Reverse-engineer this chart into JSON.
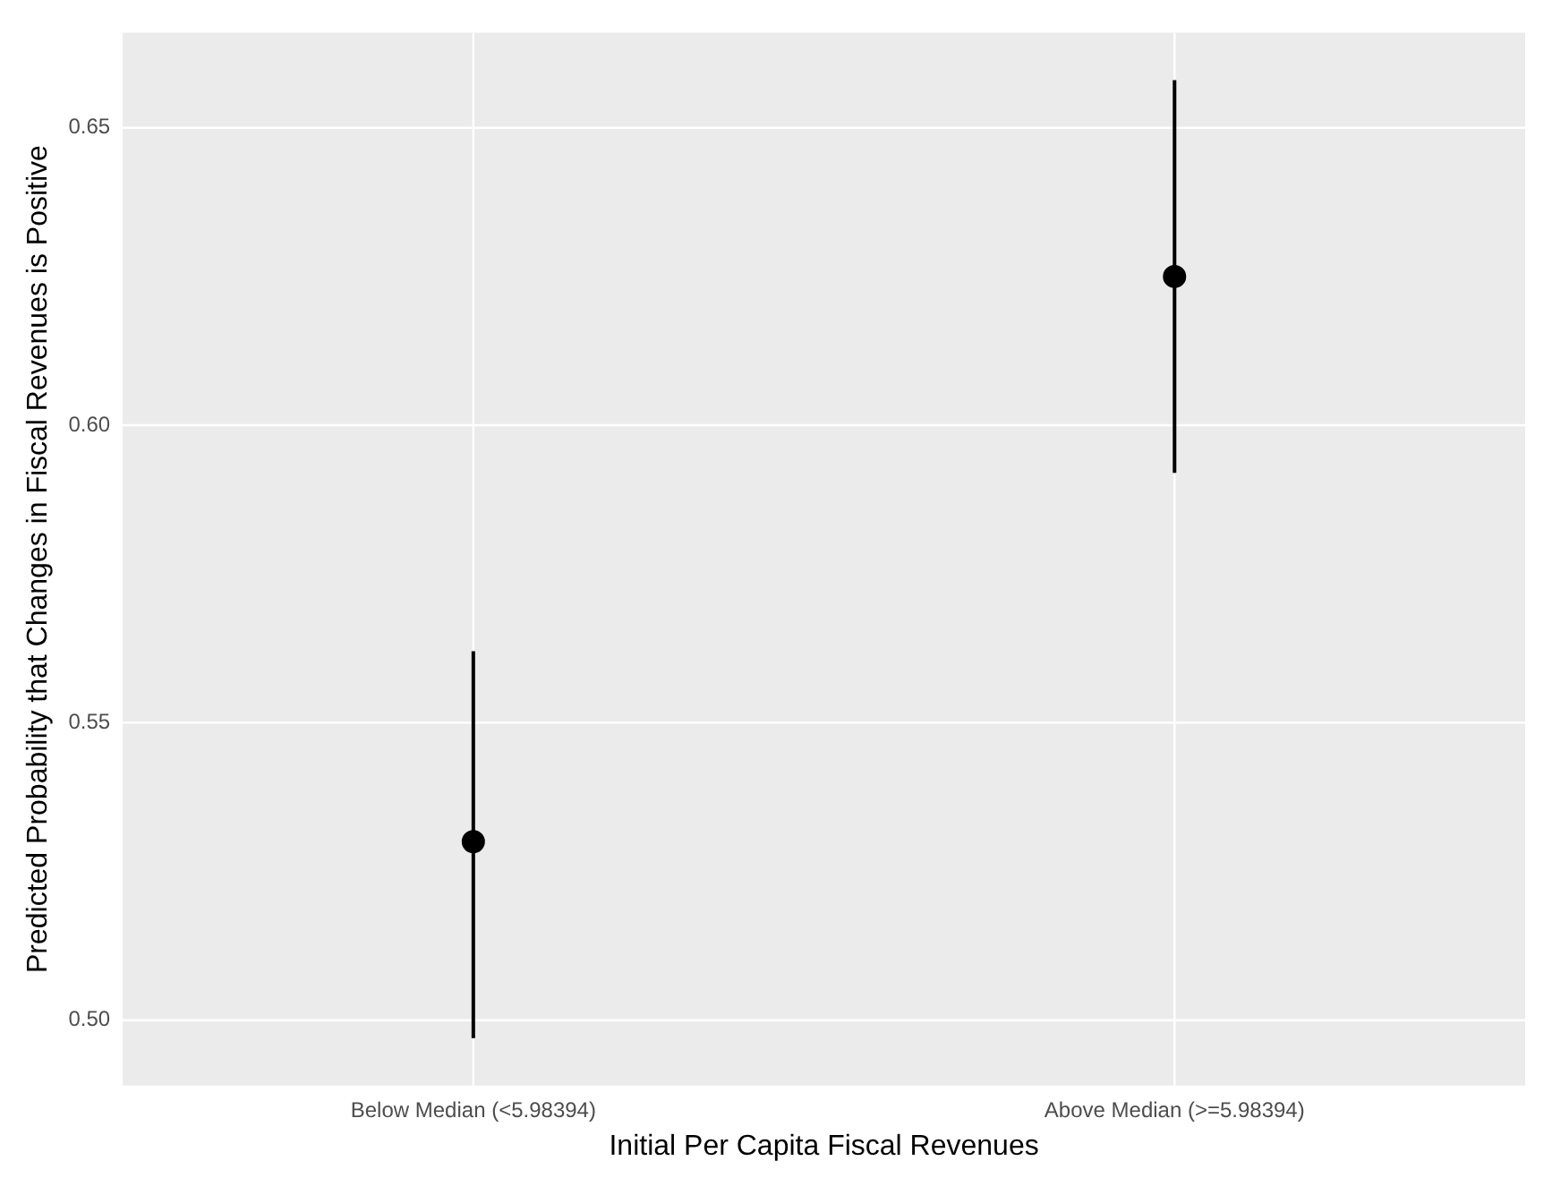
{
  "chart_data": {
    "type": "scatter",
    "xlabel": "Initial Per Capita Fiscal Revenues",
    "ylabel": "Predicted Probability that Changes in Fiscal Revenues is Positive",
    "categories": [
      "Below Median (<5.98394)",
      "Above Median (>=5.98394)"
    ],
    "values": [
      0.53,
      0.625
    ],
    "color": "#000000",
    "errors": [
      [
        0.497,
        0.562
      ],
      [
        0.592,
        0.658
      ]
    ],
    "ylim": [
      0.489,
      0.666
    ],
    "yticks": [
      {
        "value": 0.5,
        "label": "0.50"
      },
      {
        "value": 0.55,
        "label": "0.55"
      },
      {
        "value": 0.6,
        "label": "0.60"
      },
      {
        "value": 0.65,
        "label": "0.65"
      }
    ],
    "grid": true,
    "marker": "circle",
    "legend": false
  }
}
